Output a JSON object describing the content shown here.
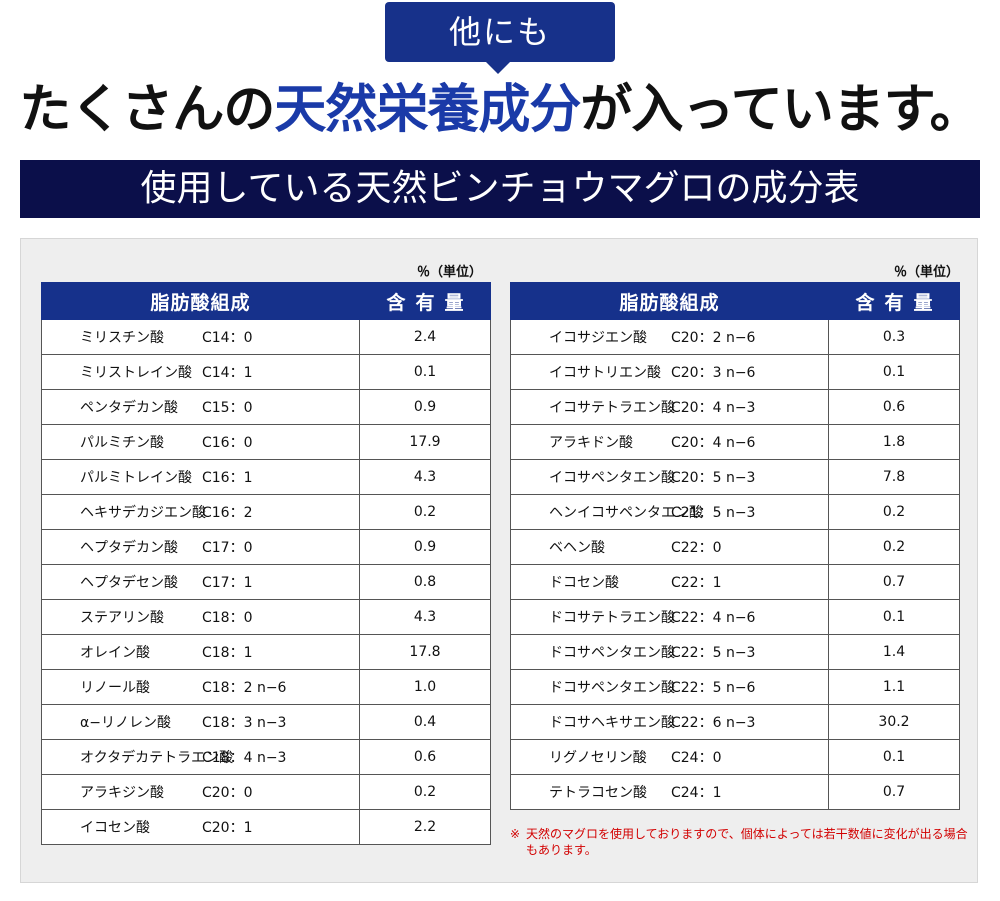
{
  "bubble": {
    "text": "他にも"
  },
  "headline": {
    "pre": "たくさんの",
    "accent": "天然栄養成分",
    "post": "が入っています。"
  },
  "banner": {
    "text": "使用している天然ビンチョウマグロの成分表"
  },
  "colors": {
    "navy": "#0b0f4a",
    "blue": "#16318b",
    "accent": "#1a3aa8",
    "note": "#d20000"
  },
  "left_table": {
    "unit": "％（単位）",
    "header_name": "脂肪酸組成",
    "header_qty": "含有量",
    "rows": [
      {
        "name": "ミリスチン酸",
        "formula": "C14：0",
        "value": "2.4"
      },
      {
        "name": "ミリストレイン酸",
        "formula": "C14：1",
        "value": "0.1"
      },
      {
        "name": "ペンタデカン酸",
        "formula": "C15：0",
        "value": "0.9"
      },
      {
        "name": "パルミチン酸",
        "formula": "C16：0",
        "value": "17.9"
      },
      {
        "name": "パルミトレイン酸",
        "formula": "C16：1",
        "value": "4.3"
      },
      {
        "name": "ヘキサデカジエン酸",
        "formula": "C16：2",
        "value": "0.2"
      },
      {
        "name": "ヘプタデカン酸",
        "formula": "C17：0",
        "value": "0.9"
      },
      {
        "name": "ヘプタデセン酸",
        "formula": "C17：1",
        "value": "0.8"
      },
      {
        "name": "ステアリン酸",
        "formula": "C18：0",
        "value": "4.3"
      },
      {
        "name": "オレイン酸",
        "formula": "C18：1",
        "value": "17.8"
      },
      {
        "name": "リノール酸",
        "formula": "C18：2 n−6",
        "value": "1.0"
      },
      {
        "name": "α−リノレン酸",
        "formula": "C18：3 n−3",
        "value": "0.4"
      },
      {
        "name": "オクタデカテトラエン酸",
        "formula": "C18：4 n−3",
        "value": "0.6"
      },
      {
        "name": "アラキジン酸",
        "formula": "C20：0",
        "value": "0.2"
      },
      {
        "name": "イコセン酸",
        "formula": "C20：1",
        "value": "2.2"
      }
    ]
  },
  "right_table": {
    "unit": "％（単位）",
    "header_name": "脂肪酸組成",
    "header_qty": "含有量",
    "rows": [
      {
        "name": "イコサジエン酸",
        "formula": "C20：2 n−6",
        "value": "0.3"
      },
      {
        "name": "イコサトリエン酸",
        "formula": "C20：3 n−6",
        "value": "0.1"
      },
      {
        "name": "イコサテトラエン酸",
        "formula": "C20：4 n−3",
        "value": "0.6"
      },
      {
        "name": "アラキドン酸",
        "formula": "C20：4 n−6",
        "value": "1.8"
      },
      {
        "name": "イコサペンタエン酸",
        "formula": "C20：5 n−3",
        "value": "7.8"
      },
      {
        "name": "ヘンイコサペンタエン酸",
        "formula": "C21：5 n−3",
        "value": "0.2"
      },
      {
        "name": "ベヘン酸",
        "formula": "C22：0",
        "value": "0.2"
      },
      {
        "name": "ドコセン酸",
        "formula": "C22：1",
        "value": "0.7"
      },
      {
        "name": "ドコサテトラエン酸",
        "formula": "C22：4 n−6",
        "value": "0.1"
      },
      {
        "name": "ドコサペンタエン酸",
        "formula": "C22：5 n−3",
        "value": "1.4"
      },
      {
        "name": "ドコサペンタエン酸",
        "formula": "C22：5 n−6",
        "value": "1.1"
      },
      {
        "name": "ドコサヘキサエン酸",
        "formula": "C22：6 n−3",
        "value": "30.2"
      },
      {
        "name": "リグノセリン酸",
        "formula": "C24：0",
        "value": "0.1"
      },
      {
        "name": "テトラコセン酸",
        "formula": "C24：1",
        "value": "0.7"
      }
    ]
  },
  "note": {
    "mark": "※",
    "text": "天然のマグロを使用しておりますので、個体によっては若干数値に変化が出る場合もあります。"
  }
}
